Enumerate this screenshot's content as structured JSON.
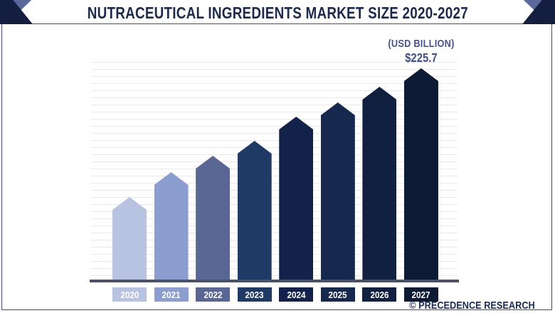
{
  "header": {
    "title": "NUTRACEUTICAL INGREDIENTS MARKET SIZE 2020-2027"
  },
  "chart_data": {
    "type": "bar",
    "title": "NUTRACEUTICAL INGREDIENTS MARKET SIZE 2020-2027",
    "unit_label": "(USD BILLION)",
    "categories": [
      "2020",
      "2021",
      "2022",
      "2023",
      "2024",
      "2025",
      "2026",
      "2027"
    ],
    "values": [
      89.2,
      115.6,
      132.8,
      149.1,
      174.3,
      189.9,
      206.5,
      225.7
    ],
    "labeled_values": {
      "2027": "$225.7"
    },
    "annotation": {
      "text": "$225.7",
      "above_year": "2027"
    },
    "note": "Only the 2027 value is labeled on the chart; other values are estimated from bar heights.",
    "ylim": [
      0,
      240
    ],
    "grid": "horizontal",
    "legend": "none",
    "bar_colors": [
      "#b7c3e1",
      "#8c9ed0",
      "#5a6795",
      "#1f3a64",
      "#13224a",
      "#16284d",
      "#112040",
      "#0c1a33"
    ],
    "bar_shape": "pentagon-pointed-top"
  },
  "footer": {
    "brand": "© PRECEDENCE RESEARCH"
  },
  "colors": {
    "title_text": "#1c2b4d",
    "annotation_text": "#47548a",
    "axis_line": "#4c5265",
    "gridline": "#e9e9ed",
    "panel_border": "#3f4b7b",
    "corner_dark": "#141e40",
    "corner_slate": "#5c689c",
    "chip_text": "#ffffff"
  }
}
